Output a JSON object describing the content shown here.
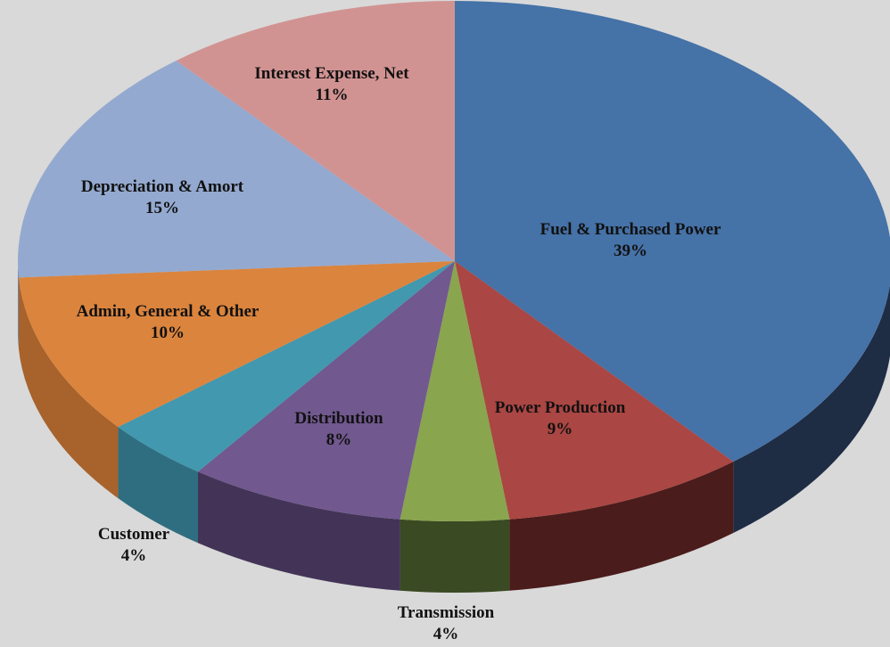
{
  "chart_data": {
    "type": "pie3d",
    "categories": [
      "Fuel & Purchased Power",
      "Power Production",
      "Transmission",
      "Distribution",
      "Customer",
      "Admin, General & Other",
      "Depreciation & Amort",
      "Interest Expense, Net"
    ],
    "values": [
      39,
      9,
      4,
      8,
      4,
      10,
      15,
      11
    ],
    "value_labels": [
      "39%",
      "9%",
      "4%",
      "8%",
      "4%",
      "10%",
      "15%",
      "11%"
    ],
    "colors": [
      "#4572a7",
      "#aa4643",
      "#89a54e",
      "#71588f",
      "#4198af",
      "#db843d",
      "#93a9cf",
      "#d19392"
    ],
    "side_colors": [
      "#1e2c44",
      "#4a1c1b",
      "#3a4a22",
      "#433457",
      "#2f6e80",
      "#a8622b",
      "#6f80a0",
      "#a06e6d"
    ]
  }
}
